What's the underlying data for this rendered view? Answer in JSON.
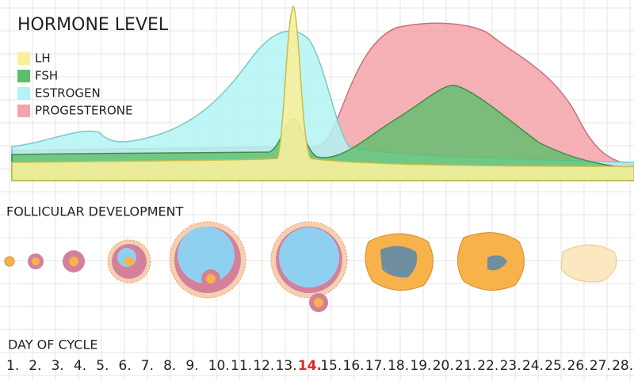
{
  "header": {
    "title": "HORMONE LEVEL"
  },
  "legend": [
    {
      "name": "LH",
      "color": "#f7ef9c"
    },
    {
      "name": "FSH",
      "color": "#5cbf6a"
    },
    {
      "name": "ESTROGEN",
      "color": "#b3f3f3"
    },
    {
      "name": "PROGESTERONE",
      "color": "#f4a3aa"
    }
  ],
  "follicles": {
    "title": "FOLLICULAR DEVELOPMENT"
  },
  "days": {
    "title": "DAY OF CYCLE",
    "labels": [
      "1.",
      "2.",
      "3.",
      "4.",
      "5.",
      "6.",
      "7.",
      "8.",
      "9.",
      "10.",
      "11.",
      "12.",
      "13.",
      "14.",
      "15.",
      "16.",
      "17.",
      "18.",
      "19.",
      "20.",
      "21.",
      "22.",
      "23.",
      "24.",
      "25.",
      "26.",
      "27.",
      "28."
    ]
  }
}
